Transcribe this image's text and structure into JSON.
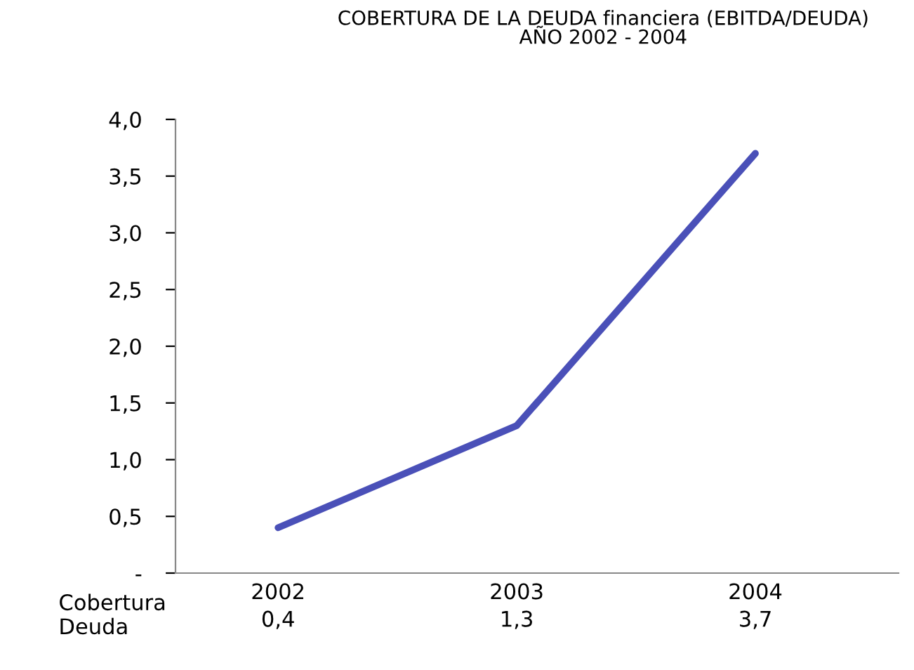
{
  "chart_data": {
    "type": "line",
    "title": "COBERTURA DE LA DEUDA financiera (EBITDA/DEUDA)\nAÑO 2002 - 2004",
    "categories": [
      "2002",
      "2003",
      "2004"
    ],
    "series": [
      {
        "name": "Cobertura\nDeuda",
        "color": "#4a50b8",
        "values": [
          0.4,
          1.3,
          3.7
        ]
      }
    ],
    "value_labels": [
      "0,4",
      "1,3",
      "3,7"
    ],
    "ylim": [
      0,
      4.0
    ],
    "yticks": [
      {
        "value": 0,
        "label": "-"
      },
      {
        "value": 0.5,
        "label": "0,5"
      },
      {
        "value": 1.0,
        "label": "1,0"
      },
      {
        "value": 1.5,
        "label": "1,5"
      },
      {
        "value": 2.0,
        "label": "2,0"
      },
      {
        "value": 2.5,
        "label": "2,5"
      },
      {
        "value": 3.0,
        "label": "3,0"
      },
      {
        "value": 3.5,
        "label": "3,5"
      },
      {
        "value": 4.0,
        "label": "4,0"
      }
    ],
    "grid": false,
    "legend": false,
    "marker": "none",
    "line_style": "solid"
  }
}
